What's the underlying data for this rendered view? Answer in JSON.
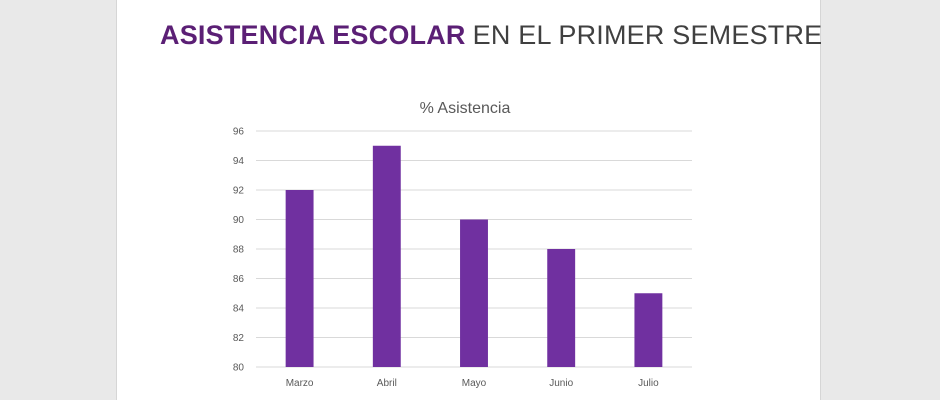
{
  "page": {
    "title_bold": "ASISTENCIA ESCOLAR",
    "title_rest": "EN EL PRIMER SEMESTRE"
  },
  "colors": {
    "title_accent": "#5b1f75",
    "bar_fill": "#7030a0",
    "gridline": "#d9d9d9",
    "background": "#e9e9e9",
    "slide": "#ffffff"
  },
  "chart_data": {
    "type": "bar",
    "title": "% Asistencia",
    "xlabel": "",
    "ylabel": "",
    "categories": [
      "Marzo",
      "Abril",
      "Mayo",
      "Junio",
      "Julio"
    ],
    "values": [
      92,
      95,
      90,
      88,
      85
    ],
    "ylim": [
      80,
      96
    ],
    "yticks": [
      80,
      82,
      84,
      86,
      88,
      90,
      92,
      94,
      96
    ],
    "grid": true,
    "legend": "none"
  }
}
